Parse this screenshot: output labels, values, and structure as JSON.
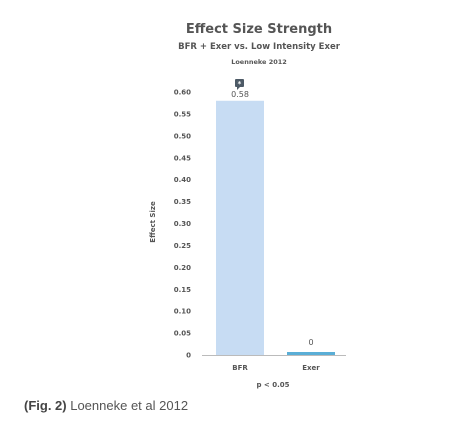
{
  "chart_data": {
    "type": "bar",
    "title": "Effect Size Strength",
    "subtitle": "BFR + Exer vs. Low Intensity Exer",
    "source": "Loenneke 2012",
    "ylabel": "Effect Size",
    "xlabel": "p < 0.05",
    "categories": [
      "BFR",
      "Exer"
    ],
    "values": [
      0.58,
      0
    ],
    "value_labels": [
      "0.58",
      "0"
    ],
    "ylim": [
      0,
      0.6
    ],
    "yticks": [
      "0",
      "0.05",
      "0.10",
      "0.15",
      "0.20",
      "0.25",
      "0.30",
      "0.35",
      "0.40",
      "0.45",
      "0.50",
      "0.55",
      "0.60"
    ],
    "bar_colors": [
      "#c7dcf3",
      "#5aaed6"
    ],
    "annotation_icon": "speech-bubble-icon",
    "grid": false,
    "legend": "none"
  },
  "caption": {
    "fig": "(Fig. 2)",
    "text": " Loenneke et al 2012"
  },
  "colors": {
    "title": "#555555",
    "tick": "#555555",
    "axis": "#bbbbbb",
    "icon": "#4d5a66"
  }
}
